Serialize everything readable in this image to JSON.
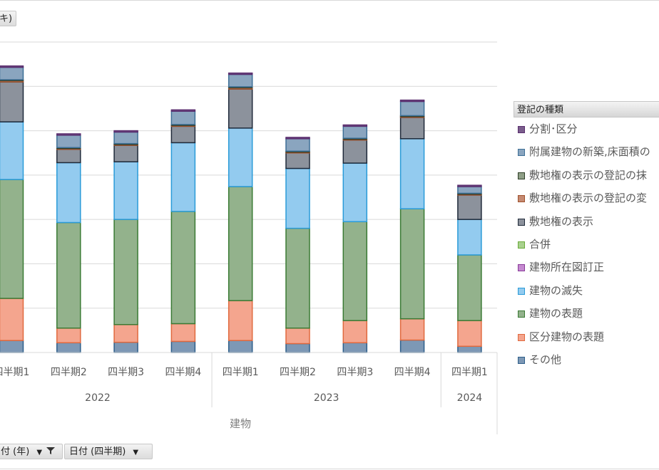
{
  "filter_buttons": {
    "top": "キ)",
    "year": "付 (年)",
    "quarter": "日付 (四半期)"
  },
  "chart_data": {
    "type": "bar",
    "stacked": true,
    "axis_title": "建物",
    "categories": [
      {
        "quarter": "四半期1",
        "year": "2022"
      },
      {
        "quarter": "四半期2",
        "year": "2022"
      },
      {
        "quarter": "四半期3",
        "year": "2022"
      },
      {
        "quarter": "四半期4",
        "year": "2022"
      },
      {
        "quarter": "四半期1",
        "year": "2023"
      },
      {
        "quarter": "四半期2",
        "year": "2023"
      },
      {
        "quarter": "四半期3",
        "year": "2023"
      },
      {
        "quarter": "四半期4",
        "year": "2023"
      },
      {
        "quarter": "四半期1",
        "year": "2024"
      }
    ],
    "year_groups": [
      {
        "label": "2022",
        "count": 4
      },
      {
        "label": "2023",
        "count": 4
      },
      {
        "label": "2024",
        "count": 1
      }
    ],
    "ylim": [
      0,
      700
    ],
    "gridline_step": 100,
    "series": [
      {
        "name": "その他",
        "fill": "#7d98b5",
        "stroke": "#2e5f8a",
        "values": [
          27,
          22,
          23,
          25,
          27,
          20,
          22,
          28,
          14
        ]
      },
      {
        "name": "区分建物の表題",
        "fill": "#f4a58e",
        "stroke": "#e0693e",
        "values": [
          95,
          33,
          40,
          40,
          90,
          35,
          50,
          48,
          58
        ]
      },
      {
        "name": "建物の表題",
        "fill": "#93b28c",
        "stroke": "#3a7a34",
        "values": [
          268,
          238,
          237,
          253,
          257,
          225,
          223,
          248,
          148
        ]
      },
      {
        "name": "建物の滅失",
        "fill": "#93cbef",
        "stroke": "#2a9bd8",
        "values": [
          130,
          135,
          130,
          155,
          132,
          135,
          132,
          158,
          80
        ]
      },
      {
        "name": "建物所在図訂正",
        "fill": "#c58ad0",
        "stroke": "#8a3b9a",
        "values": [
          0,
          0,
          0,
          0,
          0,
          0,
          0,
          0,
          0
        ]
      },
      {
        "name": "合併",
        "fill": "#a9d18e",
        "stroke": "#6aaa3a",
        "values": [
          0,
          0,
          0,
          0,
          0,
          0,
          0,
          0,
          0
        ]
      },
      {
        "name": "敷地権の表示",
        "fill": "#8c929c",
        "stroke": "#1f2a3a",
        "values": [
          90,
          30,
          37,
          37,
          88,
          35,
          52,
          48,
          55
        ]
      },
      {
        "name": "敷地権の表示の登記の変",
        "fill": "#c58a72",
        "stroke": "#a0522d",
        "values": [
          3,
          2,
          2,
          2,
          3,
          2,
          2,
          2,
          2
        ]
      },
      {
        "name": "敷地権の表示の登記の抹",
        "fill": "#8f9f87",
        "stroke": "#2f3f28",
        "values": [
          2,
          2,
          2,
          2,
          2,
          2,
          2,
          2,
          2
        ]
      },
      {
        "name": "附属建物の新築,床面積の",
        "fill": "#8aa5bf",
        "stroke": "#3d6f96",
        "values": [
          28,
          28,
          26,
          30,
          28,
          28,
          27,
          32,
          15
        ]
      },
      {
        "name": "分割･区分",
        "fill": "#7a5d8c",
        "stroke": "#5a2d6e",
        "values": [
          3,
          3,
          3,
          3,
          3,
          3,
          3,
          3,
          3
        ]
      }
    ]
  },
  "legend": {
    "title": "登記の種類",
    "items": [
      {
        "label": "分割･区分",
        "fill": "#7a5d8c",
        "stroke": "#5a2d6e"
      },
      {
        "label": "附属建物の新築,床面積の",
        "fill": "#8aa5bf",
        "stroke": "#3d6f96"
      },
      {
        "label": "敷地権の表示の登記の抹",
        "fill": "#8f9f87",
        "stroke": "#2f3f28"
      },
      {
        "label": "敷地権の表示の登記の変",
        "fill": "#c58a72",
        "stroke": "#a0522d"
      },
      {
        "label": "敷地権の表示",
        "fill": "#8c929c",
        "stroke": "#1f2a3a"
      },
      {
        "label": "合併",
        "fill": "#a9d18e",
        "stroke": "#6aaa3a"
      },
      {
        "label": "建物所在図訂正",
        "fill": "#c58ad0",
        "stroke": "#8a3b9a"
      },
      {
        "label": "建物の滅失",
        "fill": "#93cbef",
        "stroke": "#2a9bd8"
      },
      {
        "label": "建物の表題",
        "fill": "#93b28c",
        "stroke": "#3a7a34"
      },
      {
        "label": "区分建物の表題",
        "fill": "#f4a58e",
        "stroke": "#e0693e"
      },
      {
        "label": "その他",
        "fill": "#7d98b5",
        "stroke": "#2e5f8a"
      }
    ]
  }
}
